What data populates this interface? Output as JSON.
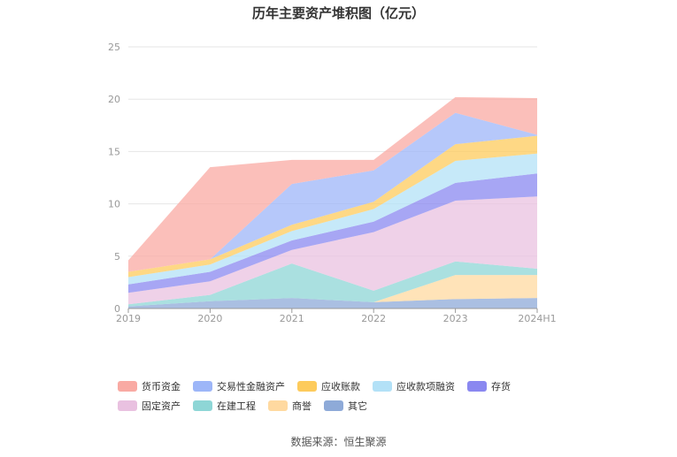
{
  "title": "历年主要资产堆积图（亿元）",
  "source": "数据来源：恒生聚源",
  "chart_data": {
    "type": "area",
    "stacked": true,
    "categories": [
      "2019",
      "2020",
      "2021",
      "2022",
      "2023",
      "2024H1"
    ],
    "ylim": [
      0,
      25
    ],
    "yticks": [
      "0",
      "5",
      "10",
      "15",
      "20",
      "25"
    ],
    "grid": true,
    "legend_position": "bottom",
    "series": [
      {
        "name": "其它",
        "color": "#8eaad8",
        "values": [
          0.2,
          0.7,
          1.0,
          0.6,
          0.9,
          1.0
        ]
      },
      {
        "name": "商誉",
        "color": "#ffd9a0",
        "values": [
          0.0,
          0.0,
          0.0,
          0.0,
          2.3,
          2.2
        ]
      },
      {
        "name": "在建工程",
        "color": "#8ed6d6",
        "values": [
          0.2,
          0.6,
          3.3,
          1.1,
          1.3,
          0.6
        ]
      },
      {
        "name": "固定资产",
        "color": "#e9c1e0",
        "values": [
          1.1,
          1.3,
          1.3,
          5.6,
          5.8,
          6.9
        ]
      },
      {
        "name": "存货",
        "color": "#8a88f0",
        "values": [
          0.8,
          0.9,
          0.9,
          1.0,
          1.7,
          2.2
        ]
      },
      {
        "name": "应收款项融资",
        "color": "#b3e1f7",
        "values": [
          0.7,
          0.7,
          0.9,
          1.2,
          2.1,
          1.9
        ]
      },
      {
        "name": "应收账款",
        "color": "#fdcb5c",
        "values": [
          0.5,
          0.5,
          0.6,
          0.7,
          1.6,
          1.7
        ]
      },
      {
        "name": "交易性金融资产",
        "color": "#9db6f8",
        "values": [
          0.0,
          0.0,
          3.9,
          3.0,
          3.0,
          0.1
        ]
      },
      {
        "name": "货币资金",
        "color": "#f9aaa3",
        "values": [
          1.1,
          8.8,
          2.3,
          1.0,
          1.5,
          3.5
        ]
      }
    ]
  },
  "legend_order": [
    "货币资金",
    "交易性金融资产",
    "应收账款",
    "应收款项融资",
    "存货",
    "固定资产",
    "在建工程",
    "商誉",
    "其它"
  ]
}
